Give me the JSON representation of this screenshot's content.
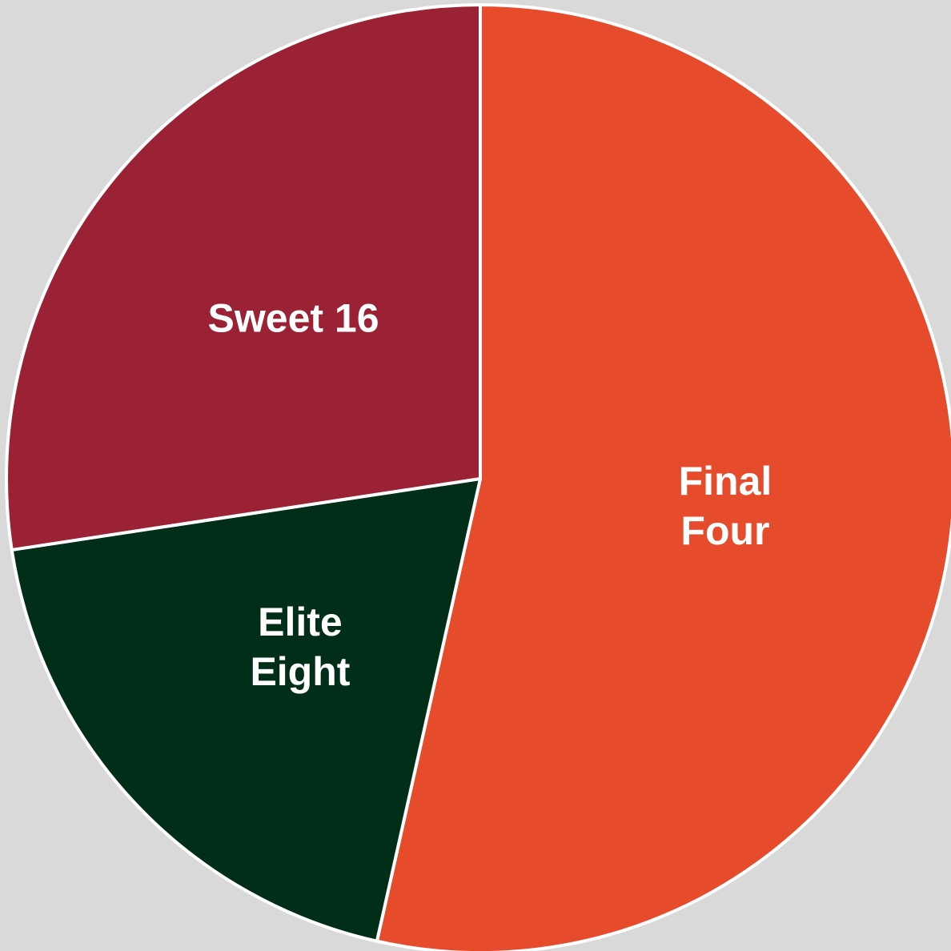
{
  "chart_data": {
    "type": "pie",
    "title": "",
    "start_angle_deg": 0,
    "direction": "clockwise",
    "slices": [
      {
        "label": [
          "Final",
          "Four"
        ],
        "value": 53.5,
        "color": "#e64b2c"
      },
      {
        "label": [
          "Elite",
          "Eight"
        ],
        "value": 19.1,
        "color": "#012e18"
      },
      {
        "label": [
          "Sweet 16"
        ],
        "value": 27.4,
        "color": "#9b2135"
      }
    ],
    "background_color": "#d9d9d9",
    "separator_color": "#ffffff"
  }
}
